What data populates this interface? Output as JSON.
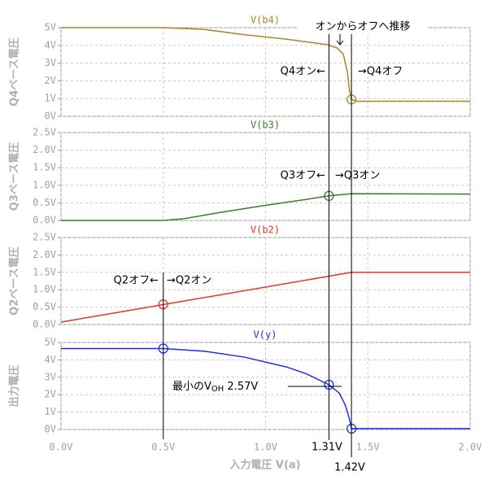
{
  "chart_data": {
    "type": "line",
    "xlabel": "入力電圧 V(a)",
    "xlim": [
      0,
      2
    ],
    "xticks": [
      {
        "value": 0,
        "label": "0.0V"
      },
      {
        "value": 0.5,
        "label": "0.5V"
      },
      {
        "value": 1,
        "label": "1.0V"
      },
      {
        "value": 1.5,
        "label": "1.5V"
      },
      {
        "value": 2,
        "label": "2.0V"
      }
    ],
    "grid": true,
    "annotations": [
      "オンからオフへ推移"
    ],
    "guides": [
      0.5,
      {
        "value": 1.31,
        "label": "1.31V"
      },
      {
        "value": 1.42,
        "label": "1.42V"
      }
    ],
    "panels": [
      {
        "title": "V(b4)",
        "ylabel": "Q4ベース電圧",
        "color": "#a8862a",
        "ylim": [
          0,
          5
        ],
        "yticks": [
          {
            "value": 0,
            "label": "0V"
          },
          {
            "value": 1,
            "label": "1V"
          },
          {
            "value": 2,
            "label": "2V"
          },
          {
            "value": 3,
            "label": "3V"
          },
          {
            "value": 4,
            "label": "4V"
          },
          {
            "value": 5,
            "label": "5V"
          }
        ],
        "x": [
          0,
          0.5,
          0.7,
          0.9,
          1.1,
          1.3,
          1.35,
          1.38,
          1.4,
          1.41,
          1.42,
          1.45,
          2.0
        ],
        "values": [
          5,
          5,
          4.9,
          4.6,
          4.35,
          4.05,
          3.85,
          3.5,
          2.5,
          1.5,
          0.95,
          0.85,
          0.85
        ],
        "markers": [
          {
            "x": 1.42,
            "y": 0.95
          }
        ],
        "annotations": [
          "Q4オン←",
          "→Q4オフ"
        ]
      },
      {
        "title": "V(b3)",
        "ylabel": "Q3ベース電圧",
        "color": "#3a7d2c",
        "ylim": [
          0,
          2.5
        ],
        "yticks": [
          {
            "value": 0,
            "label": "0.0V"
          },
          {
            "value": 0.5,
            "label": "0.5V"
          },
          {
            "value": 1,
            "label": "1.0V"
          },
          {
            "value": 1.5,
            "label": "1.5V"
          },
          {
            "value": 2,
            "label": "2.0V"
          },
          {
            "value": 2.5,
            "label": "2.5V"
          }
        ],
        "x": [
          0,
          0.5,
          0.6,
          0.8,
          1.0,
          1.2,
          1.31,
          1.42,
          2.0
        ],
        "values": [
          0,
          0,
          0.05,
          0.25,
          0.43,
          0.6,
          0.7,
          0.76,
          0.75
        ],
        "markers": [
          {
            "x": 1.31,
            "y": 0.7
          }
        ],
        "annotations": [
          "Q3オフ←",
          "→Q3オン"
        ]
      },
      {
        "title": "V(b2)",
        "ylabel": "Q2ベース電圧",
        "color": "#e8332a",
        "ylim": [
          0,
          2.5
        ],
        "yticks": [
          {
            "value": 0,
            "label": "0.0V"
          },
          {
            "value": 0.5,
            "label": "0.5V"
          },
          {
            "value": 1,
            "label": "1.0V"
          },
          {
            "value": 1.5,
            "label": "1.5V"
          },
          {
            "value": 2,
            "label": "2.0V"
          },
          {
            "value": 2.5,
            "label": "2.5V"
          }
        ],
        "x": [
          0,
          1.42,
          2.0
        ],
        "values": [
          0.07,
          1.5,
          1.5
        ],
        "markers": [
          {
            "x": 0.5,
            "y": 0.58
          }
        ],
        "annotations": [
          "Q2オフ←",
          "→Q2オン"
        ]
      },
      {
        "title": "V(y)",
        "ylabel": "出力電圧",
        "color": "#1f2fe0",
        "ylim": [
          0,
          5
        ],
        "yticks": [
          {
            "value": 0,
            "label": "0V"
          },
          {
            "value": 1,
            "label": "1V"
          },
          {
            "value": 2,
            "label": "2V"
          },
          {
            "value": 3,
            "label": "3V"
          },
          {
            "value": 4,
            "label": "4V"
          },
          {
            "value": 5,
            "label": "5V"
          }
        ],
        "x": [
          0,
          0.5,
          0.7,
          0.9,
          1.1,
          1.2,
          1.31,
          1.36,
          1.39,
          1.41,
          1.42,
          2.0
        ],
        "values": [
          4.65,
          4.65,
          4.5,
          4.15,
          3.6,
          3.2,
          2.57,
          2.1,
          1.4,
          0.6,
          0.05,
          0.05
        ],
        "markers": [
          {
            "x": 0.5,
            "y": 4.65
          },
          {
            "x": 1.31,
            "y": 2.57
          },
          {
            "x": 1.42,
            "y": 0.05
          }
        ],
        "annotations": [
          [
            "最小のV",
            "OH",
            " 2.57V"
          ]
        ]
      }
    ]
  }
}
